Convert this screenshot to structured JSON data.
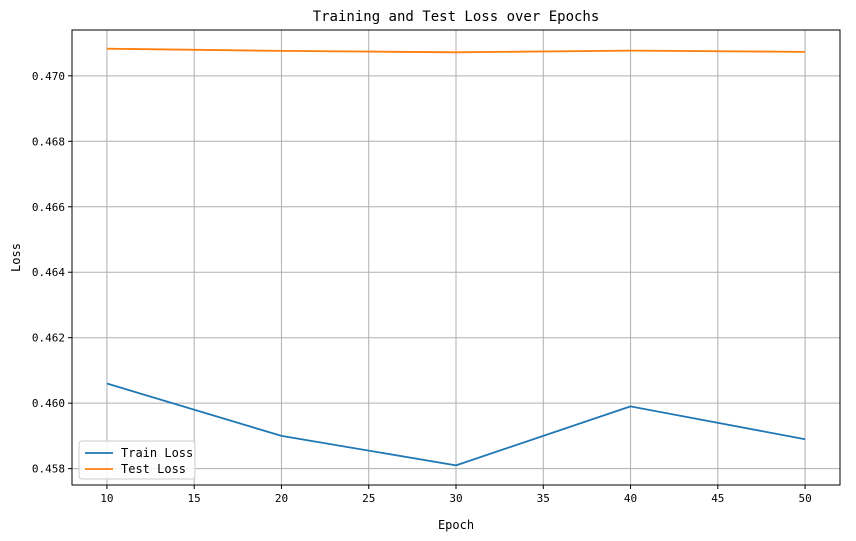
{
  "chart_data": {
    "type": "line",
    "title": "Training and Test Loss over Epochs",
    "xlabel": "Epoch",
    "ylabel": "Loss",
    "x": [
      10,
      20,
      30,
      40,
      50
    ],
    "xticks": [
      10,
      15,
      20,
      25,
      30,
      35,
      40,
      45,
      50
    ],
    "xtick_labels": [
      "10",
      "15",
      "20",
      "25",
      "30",
      "35",
      "40",
      "45",
      "50"
    ],
    "yticks": [
      0.458,
      0.46,
      0.462,
      0.464,
      0.466,
      0.468,
      0.47
    ],
    "ytick_labels": [
      "0.458",
      "0.460",
      "0.462",
      "0.464",
      "0.466",
      "0.468",
      "0.470"
    ],
    "xlim": [
      8,
      52
    ],
    "ylim": [
      0.4575,
      0.4714
    ],
    "grid": true,
    "legend_position": "lower-left",
    "series": [
      {
        "name": "Train Loss",
        "color": "#1f77b4",
        "values": [
          0.4606,
          0.459,
          0.4581,
          0.4599,
          0.4589
        ]
      },
      {
        "name": "Test Loss",
        "color": "#ff7f0e",
        "values": [
          0.47083,
          0.47076,
          0.47072,
          0.47077,
          0.47073
        ]
      }
    ]
  }
}
